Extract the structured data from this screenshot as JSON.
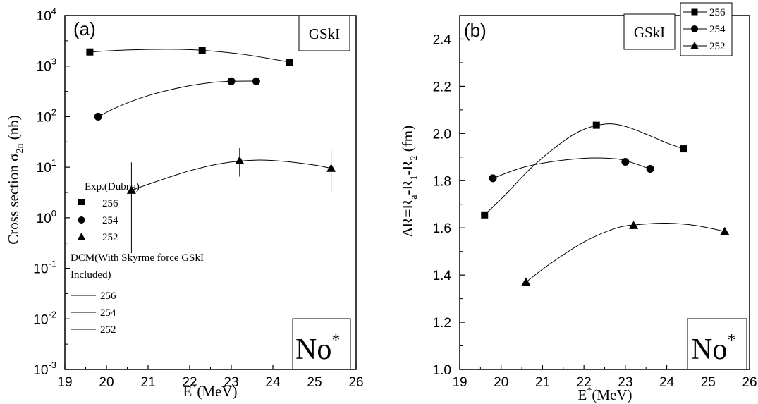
{
  "chart_data": [
    {
      "type": "scatter",
      "panel_label": "(a)",
      "force_label": "GSkI",
      "nucleus_label": "No",
      "nucleus_superscript": "*",
      "xlabel": "E",
      "xlabel_sup": "*",
      "xlabel_unit": "(MeV)",
      "ylabel": "Cross section σ",
      "ylabel_sub": "2n",
      "ylabel_unit": " (nb)",
      "xlim": [
        19,
        26
      ],
      "ylim": [
        0.001,
        10000
      ],
      "yscale": "log",
      "x_ticks": [
        "19",
        "20",
        "21",
        "22",
        "23",
        "24",
        "25",
        "26"
      ],
      "y_ticks": [
        {
          "base": "10",
          "exp": "-3"
        },
        {
          "base": "10",
          "exp": "-2"
        },
        {
          "base": "10",
          "exp": "-1"
        },
        {
          "base": "10",
          "exp": "0"
        },
        {
          "base": "10",
          "exp": "1"
        },
        {
          "base": "10",
          "exp": "2"
        },
        {
          "base": "10",
          "exp": "3"
        },
        {
          "base": "10",
          "exp": "4"
        }
      ],
      "legend_exp_title": "Exp.(Dubna)",
      "legend_dcm_title": [
        "DCM(With Skyrme force GSkI",
        "Included)"
      ],
      "series": [
        {
          "name": "256",
          "marker": "square",
          "x": [
            19.6,
            22.3,
            24.4
          ],
          "y": [
            1900,
            2050,
            1200
          ],
          "fit": [
            [
              19.6,
              1900
            ],
            [
              20.5,
              2080
            ],
            [
              21.5,
              2150
            ],
            [
              22.3,
              2050
            ],
            [
              23.3,
              1700
            ],
            [
              24.4,
              1200
            ]
          ]
        },
        {
          "name": "254",
          "marker": "circle",
          "x": [
            19.8,
            23.0,
            23.6
          ],
          "y": [
            100,
            500,
            500
          ],
          "fit": [
            [
              19.8,
              100
            ],
            [
              20.3,
              160
            ],
            [
              21.0,
              260
            ],
            [
              21.8,
              380
            ],
            [
              22.5,
              470
            ],
            [
              23.0,
              500
            ],
            [
              23.6,
              505
            ]
          ]
        },
        {
          "name": "252",
          "marker": "triangle",
          "x": [
            20.6,
            23.2,
            25.4
          ],
          "y": [
            3.5,
            13.5,
            9.5
          ],
          "yerr_low": [
            0.2,
            6.5,
            3.2
          ],
          "yerr_high": [
            12.5,
            24,
            22
          ],
          "fit": [
            [
              20.6,
              3.5
            ],
            [
              21.2,
              5.2
            ],
            [
              22.0,
              8.5
            ],
            [
              22.8,
              12
            ],
            [
              23.6,
              13.8
            ],
            [
              24.3,
              13.0
            ],
            [
              25.0,
              11
            ],
            [
              25.4,
              9.5
            ]
          ]
        }
      ]
    },
    {
      "type": "scatter",
      "panel_label": "(b)",
      "force_label": "GSkI",
      "nucleus_label": "No",
      "nucleus_superscript": "*",
      "xlabel": "E",
      "xlabel_sup": "*",
      "xlabel_unit": "(MeV)",
      "ylabel_parts": [
        "ΔR=R",
        "a",
        "-R",
        "1",
        "-R",
        "2",
        " (fm)"
      ],
      "xlim": [
        19,
        26
      ],
      "ylim": [
        1.0,
        2.5
      ],
      "x_ticks": [
        "19",
        "20",
        "21",
        "22",
        "23",
        "24",
        "25",
        "26"
      ],
      "y_ticks": [
        "1.0",
        "1.2",
        "1.4",
        "1.6",
        "1.8",
        "2.0",
        "2.2",
        "2.4"
      ],
      "legend_position": "top-right",
      "series": [
        {
          "name": "256",
          "marker": "square",
          "x": [
            19.6,
            22.3,
            24.4
          ],
          "y": [
            1.655,
            2.035,
            1.935
          ],
          "fit": [
            [
              19.6,
              1.655
            ],
            [
              20.1,
              1.74
            ],
            [
              20.7,
              1.85
            ],
            [
              21.3,
              1.94
            ],
            [
              21.9,
              2.01
            ],
            [
              22.5,
              2.04
            ],
            [
              23.0,
              2.03
            ],
            [
              23.6,
              1.99
            ],
            [
              24.0,
              1.96
            ],
            [
              24.4,
              1.935
            ]
          ]
        },
        {
          "name": "254",
          "marker": "circle",
          "x": [
            19.8,
            23.0,
            23.6
          ],
          "y": [
            1.81,
            1.88,
            1.85
          ],
          "fit": [
            [
              19.8,
              1.81
            ],
            [
              20.5,
              1.855
            ],
            [
              21.2,
              1.88
            ],
            [
              22.0,
              1.895
            ],
            [
              22.6,
              1.895
            ],
            [
              23.0,
              1.885
            ],
            [
              23.6,
              1.85
            ]
          ]
        },
        {
          "name": "252",
          "marker": "triangle",
          "x": [
            20.6,
            23.2,
            25.4
          ],
          "y": [
            1.37,
            1.61,
            1.585
          ],
          "fit": [
            [
              20.6,
              1.37
            ],
            [
              21.2,
              1.45
            ],
            [
              22.0,
              1.54
            ],
            [
              22.8,
              1.6
            ],
            [
              23.4,
              1.615
            ],
            [
              24.0,
              1.62
            ],
            [
              24.7,
              1.61
            ],
            [
              25.4,
              1.585
            ]
          ]
        }
      ]
    }
  ]
}
